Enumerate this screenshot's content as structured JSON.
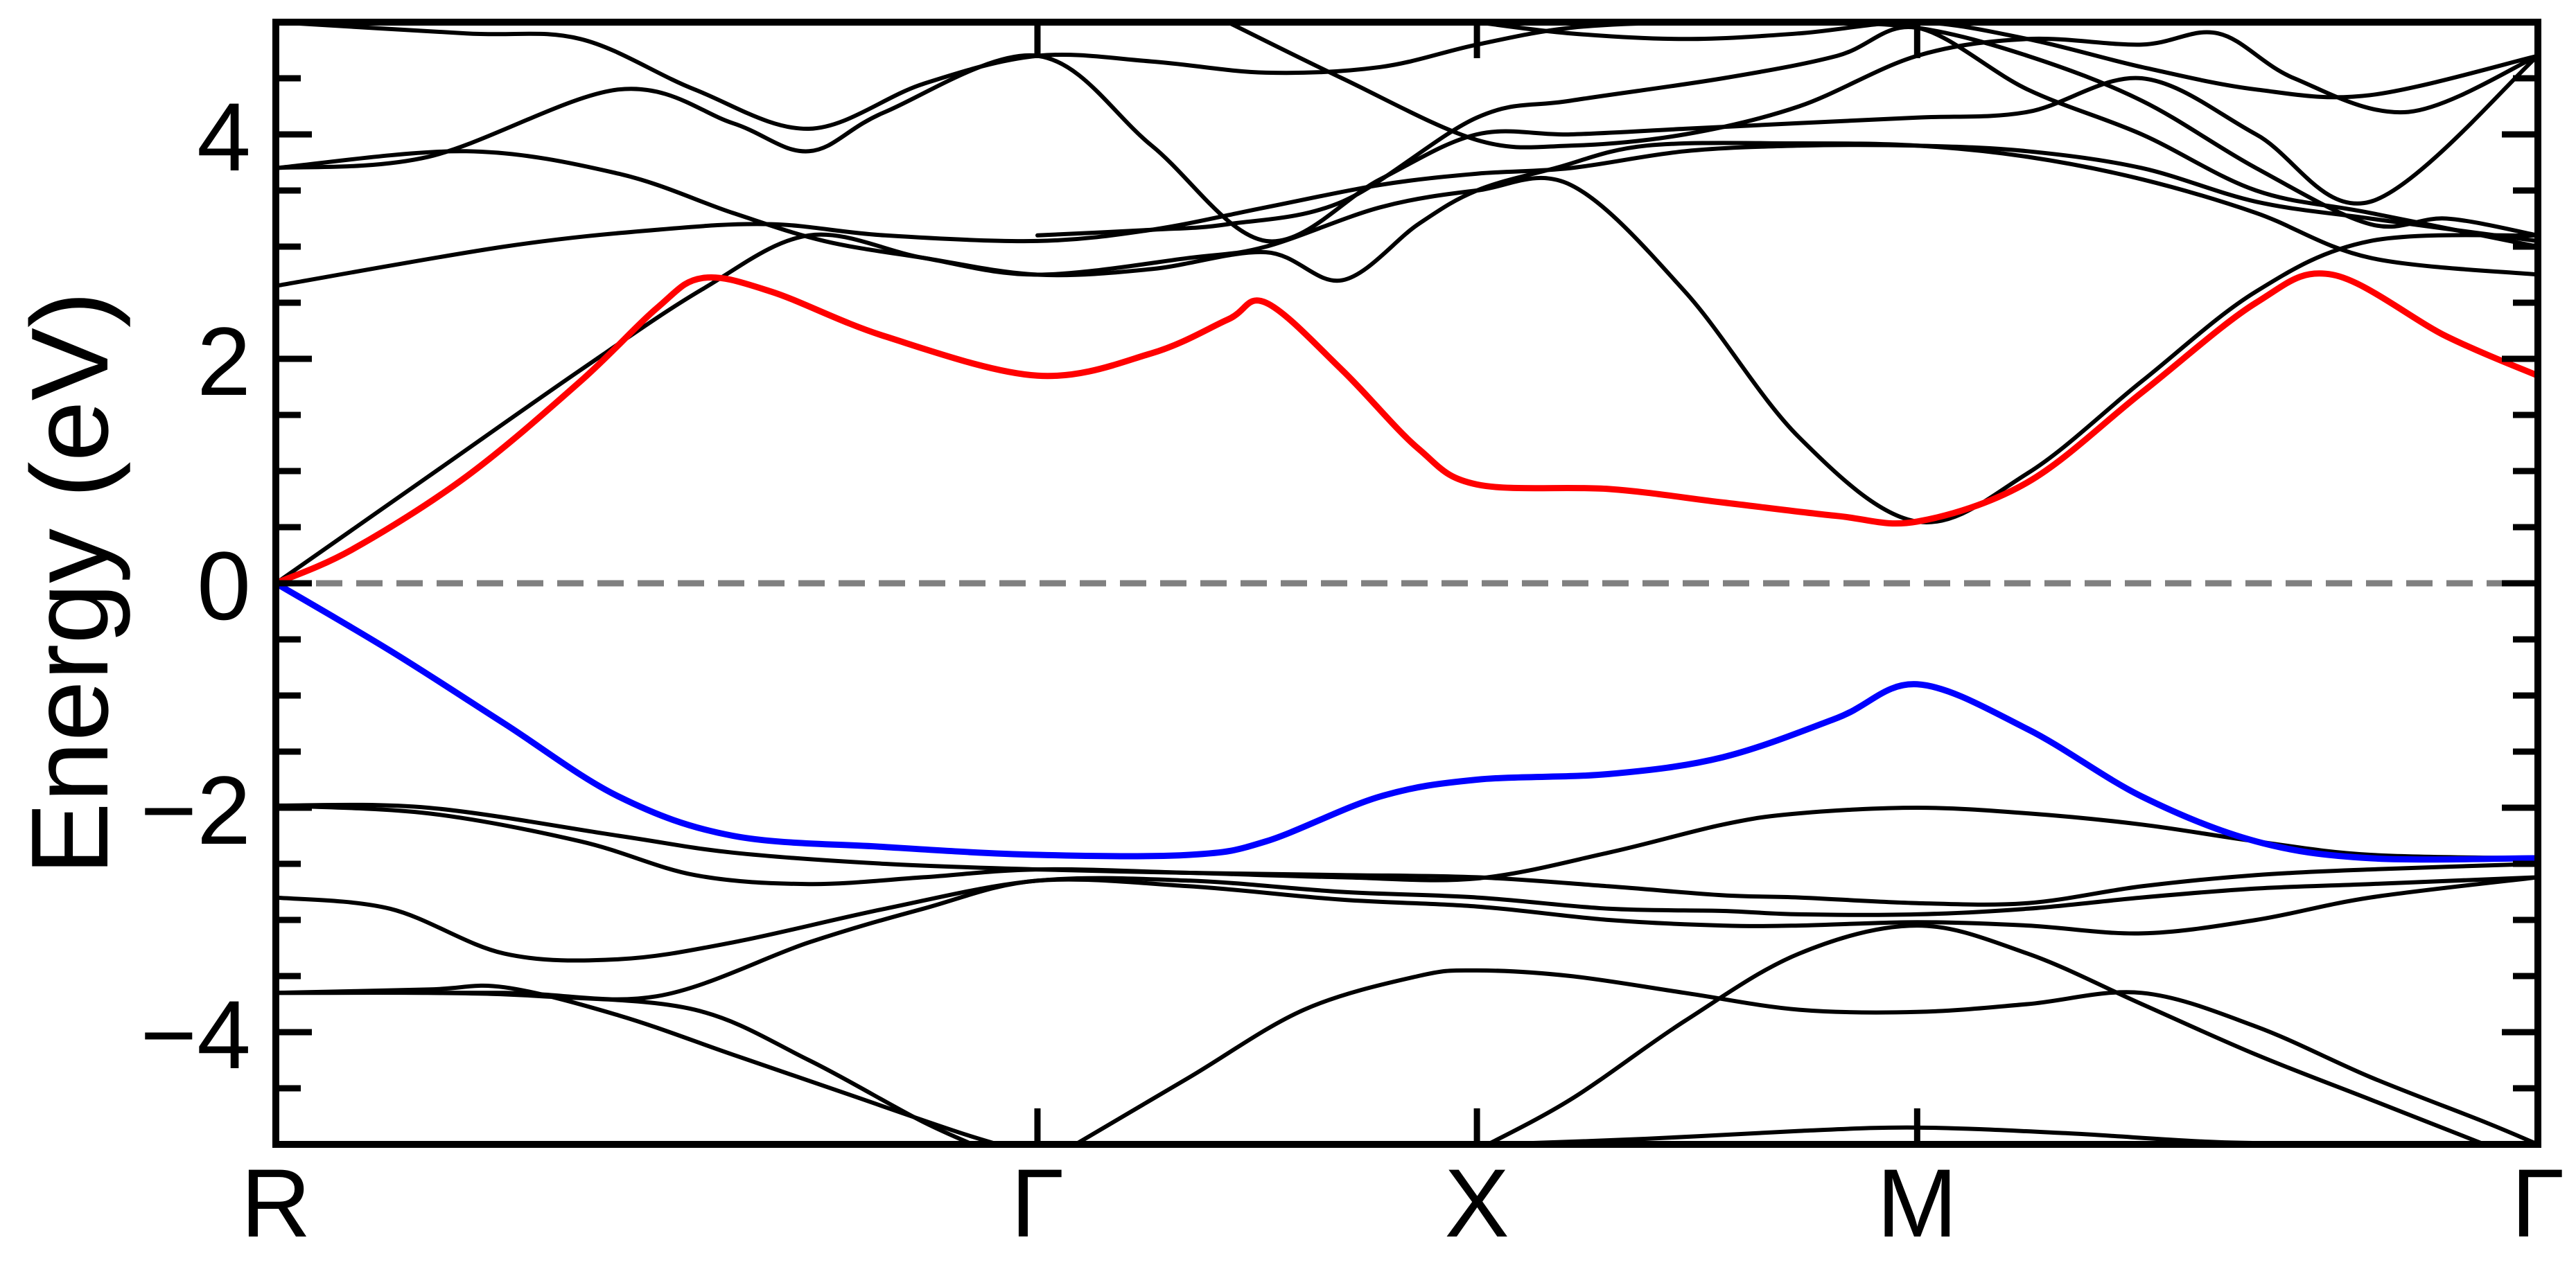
{
  "chart_data": {
    "type": "line",
    "title": "",
    "ylabel": "Energy (eV)",
    "xlabel": "",
    "ylim": [
      -5,
      5
    ],
    "yticks": [
      -4,
      -2,
      0,
      2,
      4
    ],
    "ytick_labels": [
      "−4",
      "−2",
      "0",
      "2",
      "4"
    ],
    "minor_ytick_step": 0.5,
    "kpath": [
      {
        "label": "R",
        "x": 0
      },
      {
        "label": "Γ",
        "x": 1.0
      },
      {
        "label": "X",
        "x": 1.577
      },
      {
        "label": "M",
        "x": 2.155
      },
      {
        "label": "Γ",
        "x": 2.97
      }
    ],
    "xlim": [
      0,
      2.97
    ],
    "fermi_level": {
      "y": 0,
      "color": "#808080",
      "style": "dashed"
    },
    "colors": {
      "highlight_conduction": "#ff0000",
      "highlight_valence": "#0000ff",
      "other_bands": "#000000"
    },
    "series": [
      {
        "color": "#ff0000",
        "x": [
          0,
          0.1,
          0.25,
          0.4,
          0.5,
          0.56,
          0.65,
          0.8,
          1.0,
          1.15,
          1.25,
          1.3,
          1.4,
          1.5,
          1.577,
          1.75,
          1.9,
          2.05,
          2.155,
          2.3,
          2.45,
          2.6,
          2.7,
          2.85,
          2.97
        ],
        "y": [
          0,
          0.3,
          0.95,
          1.8,
          2.45,
          2.72,
          2.6,
          2.2,
          1.85,
          2.05,
          2.35,
          2.5,
          1.9,
          1.2,
          0.88,
          0.84,
          0.72,
          0.6,
          0.55,
          0.9,
          1.7,
          2.5,
          2.75,
          2.2,
          1.85
        ]
      },
      {
        "color": "#0000ff",
        "x": [
          0,
          0.15,
          0.3,
          0.45,
          0.6,
          0.8,
          1.0,
          1.2,
          1.3,
          1.45,
          1.577,
          1.75,
          1.9,
          2.05,
          2.155,
          2.3,
          2.45,
          2.6,
          2.75,
          2.97
        ],
        "y": [
          0,
          -0.6,
          -1.25,
          -1.9,
          -2.25,
          -2.35,
          -2.42,
          -2.42,
          -2.3,
          -1.9,
          -1.75,
          -1.7,
          -1.55,
          -1.2,
          -0.9,
          -1.3,
          -1.9,
          -2.3,
          -2.45,
          -2.45
        ]
      }
    ],
    "black_bands": [
      {
        "x": [
          0,
          0.2,
          0.4,
          0.56,
          0.7,
          0.85,
          1.0,
          1.2,
          1.3,
          1.45,
          1.577,
          1.7,
          1.85,
          2.0,
          2.155,
          2.3,
          2.45,
          2.6,
          2.75,
          2.97
        ],
        "y": [
          0,
          0.95,
          1.9,
          2.62,
          3.1,
          2.9,
          2.75,
          2.9,
          3.0,
          3.35,
          3.5,
          3.55,
          2.6,
          1.3,
          0.55,
          0.98,
          1.8,
          2.6,
          3.05,
          3.1
        ]
      },
      {
        "x": [
          0,
          0.3,
          0.5,
          0.65,
          0.8,
          1.0,
          1.15,
          1.3,
          1.45,
          1.577,
          1.7,
          1.85,
          2.0,
          2.155,
          2.3,
          2.45,
          2.6,
          2.75,
          2.97
        ],
        "y": [
          2.65,
          3.0,
          3.15,
          3.2,
          3.1,
          3.05,
          3.15,
          3.35,
          3.55,
          3.65,
          3.7,
          3.85,
          3.9,
          3.9,
          3.85,
          3.7,
          3.4,
          3.25,
          3.05
        ]
      },
      {
        "x": [
          0,
          0.25,
          0.45,
          0.6,
          0.72,
          0.85,
          1.0,
          1.15,
          1.3,
          1.4,
          1.5,
          1.577,
          1.68,
          1.8,
          2.0,
          2.155,
          2.3,
          2.45,
          2.6,
          2.75,
          2.97
        ],
        "y": [
          3.7,
          3.85,
          3.65,
          3.3,
          3.05,
          2.9,
          2.75,
          2.8,
          2.95,
          2.7,
          3.2,
          3.5,
          3.7,
          3.9,
          3.92,
          3.9,
          3.8,
          3.6,
          3.3,
          2.9,
          2.75
        ]
      },
      {
        "x": [
          0,
          0.2,
          0.45,
          0.6,
          0.7,
          0.8,
          1.0,
          1.15,
          1.3,
          1.45,
          1.577,
          1.7,
          1.85,
          2.0,
          2.155,
          2.3,
          2.45,
          2.6,
          2.75,
          2.97
        ],
        "y": [
          3.7,
          3.8,
          4.4,
          4.1,
          3.85,
          4.2,
          4.7,
          3.9,
          3.05,
          3.6,
          4.0,
          4.0,
          4.05,
          4.1,
          4.15,
          4.2,
          4.5,
          4.0,
          3.4,
          4.7
        ]
      },
      {
        "x": [
          0,
          0.25,
          0.4,
          0.55,
          0.7,
          0.85,
          1.0,
          1.15,
          1.3,
          1.45,
          1.577,
          1.7,
          1.85,
          2.0,
          2.155,
          2.3,
          2.45,
          2.6,
          2.75,
          2.85,
          2.97
        ],
        "y": [
          5.0,
          4.9,
          4.85,
          4.4,
          4.05,
          4.45,
          4.7,
          4.65,
          4.55,
          4.6,
          4.8,
          4.95,
          5.0,
          5.0,
          4.95,
          4.7,
          4.3,
          3.7,
          3.2,
          3.25,
          3.1
        ]
      },
      {
        "x": [
          1.0,
          1.15,
          1.25,
          1.4,
          1.577,
          1.7,
          1.9,
          2.05,
          2.155,
          2.3,
          2.45,
          2.6,
          2.75,
          2.97
        ],
        "y": [
          3.1,
          3.15,
          3.2,
          3.4,
          4.15,
          4.3,
          4.5,
          4.7,
          4.95,
          4.4,
          4.0,
          3.5,
          3.3,
          3.0
        ]
      },
      {
        "x": [
          1.25,
          1.4,
          1.577,
          1.7,
          1.85,
          2.0,
          2.155,
          2.3,
          2.45,
          2.55,
          2.65,
          2.8,
          2.97
        ],
        "y": [
          5.0,
          4.5,
          3.95,
          3.9,
          4.0,
          4.25,
          4.7,
          4.85,
          4.8,
          4.9,
          4.5,
          4.2,
          4.7
        ]
      },
      {
        "x": [
          1.577,
          1.7,
          1.85,
          2.0,
          2.155,
          2.3,
          2.45,
          2.6,
          2.75,
          2.97
        ],
        "y": [
          5.0,
          4.9,
          4.85,
          4.9,
          5.0,
          4.85,
          4.6,
          4.4,
          4.35,
          4.7
        ]
      },
      {
        "x": [
          0,
          0.2,
          0.4,
          0.55,
          0.7,
          0.85,
          1.0,
          1.2,
          1.4,
          1.577,
          1.75,
          1.9,
          2.0,
          2.155,
          2.3,
          2.45,
          2.6,
          2.75,
          2.97
        ],
        "y": [
          -1.98,
          -2.05,
          -2.3,
          -2.6,
          -2.68,
          -2.62,
          -2.55,
          -2.58,
          -2.62,
          -2.63,
          -2.4,
          -2.15,
          -2.05,
          -2.0,
          -2.05,
          -2.15,
          -2.3,
          -2.42,
          -2.45
        ]
      },
      {
        "x": [
          0,
          0.2,
          0.45,
          0.6,
          0.8,
          1.0,
          1.2,
          1.4,
          1.577,
          1.75,
          1.9,
          2.0,
          2.155,
          2.3,
          2.45,
          2.6,
          2.75,
          2.97
        ],
        "y": [
          -1.98,
          -2.0,
          -2.25,
          -2.4,
          -2.5,
          -2.55,
          -2.58,
          -2.6,
          -2.62,
          -2.7,
          -2.78,
          -2.8,
          -2.85,
          -2.85,
          -2.7,
          -2.6,
          -2.55,
          -2.5
        ]
      },
      {
        "x": [
          0,
          0.15,
          0.3,
          0.45,
          0.6,
          0.8,
          1.0,
          1.2,
          1.4,
          1.577,
          1.75,
          1.9,
          2.0,
          2.155,
          2.3,
          2.45,
          2.6,
          2.75,
          2.97
        ],
        "y": [
          -2.8,
          -2.9,
          -3.3,
          -3.35,
          -3.2,
          -2.9,
          -2.65,
          -2.65,
          -2.75,
          -2.8,
          -2.9,
          -2.92,
          -2.95,
          -2.95,
          -2.9,
          -2.8,
          -2.72,
          -2.68,
          -2.62
        ]
      },
      {
        "x": [
          0,
          0.3,
          0.5,
          0.7,
          0.85,
          1.0,
          1.2,
          1.4,
          1.577,
          1.75,
          1.9,
          2.0,
          2.155,
          2.3,
          2.45,
          2.6,
          2.75,
          2.97
        ],
        "y": [
          -3.65,
          -3.65,
          -3.68,
          -3.2,
          -2.9,
          -2.65,
          -2.7,
          -2.82,
          -2.88,
          -3.0,
          -3.05,
          -3.05,
          -3.02,
          -3.05,
          -3.12,
          -3.0,
          -2.8,
          -2.62
        ]
      },
      {
        "x": [
          0,
          0.2,
          0.3,
          0.45,
          0.6,
          0.75,
          0.9,
          1.0
        ],
        "y": [
          -3.65,
          -3.62,
          -3.6,
          -3.85,
          -4.2,
          -4.55,
          -4.9,
          -5.1
        ]
      },
      {
        "x": [
          0,
          0.2,
          0.35,
          0.55,
          0.7,
          0.85,
          0.95
        ],
        "y": [
          -3.65,
          -3.65,
          -3.68,
          -3.8,
          -4.25,
          -4.8,
          -5.1
        ]
      },
      {
        "x": [
          1.05,
          1.2,
          1.35,
          1.5,
          1.577,
          1.7,
          1.85,
          2.0,
          2.155,
          2.3,
          2.45,
          2.6,
          2.75,
          2.9,
          2.97
        ],
        "y": [
          -5.0,
          -4.4,
          -3.8,
          -3.5,
          -3.45,
          -3.5,
          -3.65,
          -3.8,
          -3.82,
          -3.75,
          -3.65,
          -3.95,
          -4.4,
          -4.8,
          -5.0
        ]
      },
      {
        "x": [
          1.577,
          1.7,
          1.85,
          2.0,
          2.155,
          2.3,
          2.45,
          2.6,
          2.75,
          2.9
        ],
        "y": [
          -5.05,
          -4.6,
          -3.9,
          -3.3,
          -3.05,
          -3.3,
          -3.75,
          -4.2,
          -4.6,
          -5.0
        ]
      },
      {
        "x": [
          1.6,
          1.8,
          2.0,
          2.155,
          2.35,
          2.55,
          2.75,
          2.97
        ],
        "y": [
          -5.0,
          -4.95,
          -4.88,
          -4.85,
          -4.9,
          -4.98,
          -5.0,
          -5.05
        ]
      }
    ]
  }
}
